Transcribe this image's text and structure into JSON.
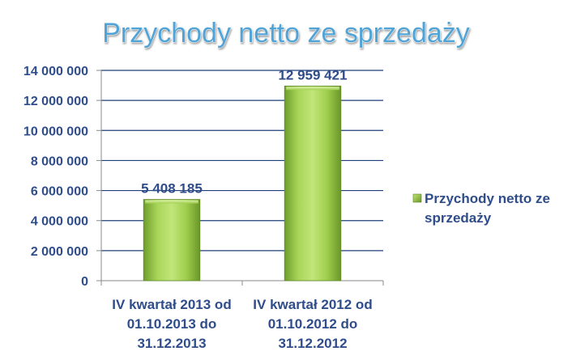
{
  "chart_data": {
    "type": "bar",
    "title": "Przychody netto ze sprzedaży",
    "categories": [
      [
        "IV kwartał 2013 od",
        "01.10.2013 do",
        "31.12.2013"
      ],
      [
        "IV kwartał 2012 od",
        "01.10.2012 do",
        "31.12.2012"
      ]
    ],
    "series": [
      {
        "name": "Przychody netto ze sprzedaży",
        "values": [
          5408185,
          12959421
        ],
        "data_labels": [
          "5 408 185",
          "12 959 421"
        ],
        "color": "#8dc63f"
      }
    ],
    "y_ticks": [
      "0",
      "2 000 000",
      "4 000 000",
      "6 000 000",
      "8 000 000",
      "10 000 000",
      "12 000 000",
      "14 000 000"
    ],
    "ylim": [
      0,
      14000000
    ],
    "grid": true,
    "legend_position": "right",
    "legend_lines": [
      "Przychody netto ze",
      "sprzedaży"
    ]
  }
}
